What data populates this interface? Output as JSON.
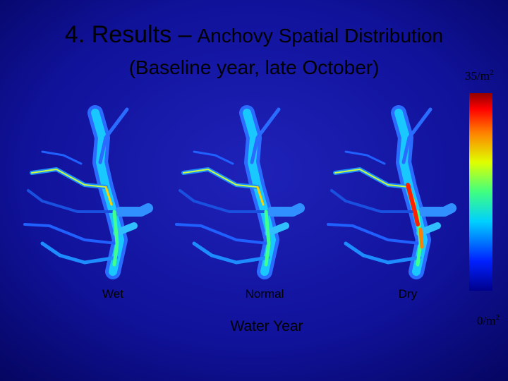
{
  "header": {
    "title_main": "4. Results –",
    "title_rest": "Anchovy Spatial Distribution",
    "subtitle": "(Baseline year, late October)"
  },
  "maps": [
    {
      "label": "Wet"
    },
    {
      "label": "Normal"
    },
    {
      "label": "Dry"
    }
  ],
  "axis_label": "Water Year",
  "colorbar": {
    "top": {
      "text": "35/m",
      "sup": "2"
    },
    "bottom": {
      "text": "0/m",
      "sup": "2"
    }
  }
}
